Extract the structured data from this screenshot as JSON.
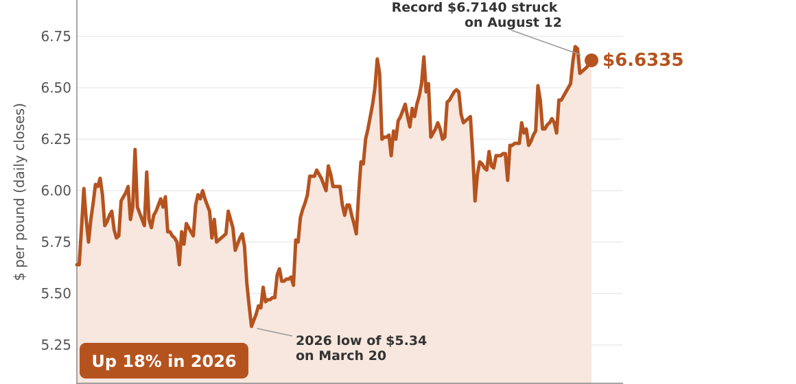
{
  "colors": {
    "line": "#b5531f",
    "area": "#f7e7de",
    "grid": "#e2e2e2",
    "axis": "#888888",
    "badge_bg": "#b5531f",
    "badge_text": "#ffffff",
    "annotation_text": "#333333",
    "leader": "#999999"
  },
  "chart_data": {
    "type": "area",
    "ylabel": "$ per pound (daily closes)",
    "ylim": [
      5.15,
      6.85
    ],
    "yticks": [
      5.25,
      5.5,
      5.75,
      6.0,
      6.25,
      6.5,
      6.75
    ],
    "ytick_labels": [
      "5.25",
      "5.50",
      "5.75",
      "6.00",
      "6.25",
      "6.50",
      "6.75"
    ],
    "grid": true,
    "y": [
      5.64,
      5.64,
      5.82,
      6.01,
      5.86,
      5.75,
      5.86,
      5.94,
      6.03,
      6.02,
      6.06,
      5.98,
      5.83,
      5.85,
      5.88,
      5.9,
      5.81,
      5.77,
      5.78,
      5.95,
      5.97,
      5.99,
      6.02,
      5.86,
      5.92,
      6.2,
      5.92,
      5.89,
      5.86,
      5.83,
      6.09,
      5.86,
      5.82,
      5.88,
      5.9,
      5.93,
      5.96,
      5.92,
      5.97,
      5.8,
      5.8,
      5.78,
      5.77,
      5.75,
      5.64,
      5.8,
      5.74,
      5.84,
      5.82,
      5.8,
      5.78,
      5.93,
      5.98,
      5.96,
      6.0,
      5.96,
      5.93,
      5.9,
      5.77,
      5.86,
      5.75,
      5.76,
      5.77,
      5.78,
      5.79,
      5.9,
      5.86,
      5.82,
      5.71,
      5.74,
      5.77,
      5.79,
      5.73,
      5.55,
      5.44,
      5.34,
      5.37,
      5.4,
      5.44,
      5.43,
      5.53,
      5.46,
      5.47,
      5.47,
      5.48,
      5.48,
      5.59,
      5.62,
      5.56,
      5.56,
      5.57,
      5.57,
      5.58,
      5.54,
      5.76,
      5.75,
      5.87,
      5.91,
      5.94,
      5.98,
      6.07,
      6.07,
      6.07,
      6.1,
      6.08,
      6.06,
      6.03,
      6.0,
      6.12,
      6.08,
      6.02,
      6.02,
      6.02,
      6.02,
      5.93,
      5.88,
      5.93,
      5.93,
      5.88,
      5.84,
      5.79,
      5.98,
      6.14,
      6.13,
      6.25,
      6.3,
      6.36,
      6.42,
      6.5,
      6.64,
      6.57,
      6.25,
      6.26,
      6.26,
      6.27,
      6.17,
      6.29,
      6.25,
      6.34,
      6.36,
      6.39,
      6.42,
      6.36,
      6.31,
      6.4,
      6.36,
      6.42,
      6.46,
      6.52,
      6.65,
      6.48,
      6.52,
      6.26,
      6.28,
      6.3,
      6.33,
      6.3,
      6.25,
      6.26,
      6.43,
      6.44,
      6.46,
      6.48,
      6.49,
      6.48,
      6.37,
      6.33,
      6.34,
      6.35,
      6.36,
      6.18,
      5.95,
      6.08,
      6.14,
      6.13,
      6.11,
      6.1,
      6.19,
      6.12,
      6.11,
      6.17,
      6.17,
      6.17,
      6.18,
      6.18,
      6.05,
      6.22,
      6.22,
      6.23,
      6.23,
      6.23,
      6.33,
      6.28,
      6.3,
      6.22,
      6.24,
      6.27,
      6.29,
      6.51,
      6.44,
      6.3,
      6.3,
      6.32,
      6.33,
      6.35,
      6.33,
      6.28,
      6.44,
      6.44,
      6.46,
      6.48,
      6.5,
      6.52,
      6.63,
      6.7,
      6.69,
      6.57,
      6.58,
      6.59,
      6.6,
      6.62,
      6.6335
    ],
    "last_value_label": "$6.6335",
    "annotations": [
      {
        "text_lines": [
          "Record $6.7140 struck",
          "on August 12"
        ]
      },
      {
        "text_lines": [
          "2026 low of $5.34",
          "on March 20"
        ]
      }
    ],
    "badge": "Up 18% in 2026"
  }
}
